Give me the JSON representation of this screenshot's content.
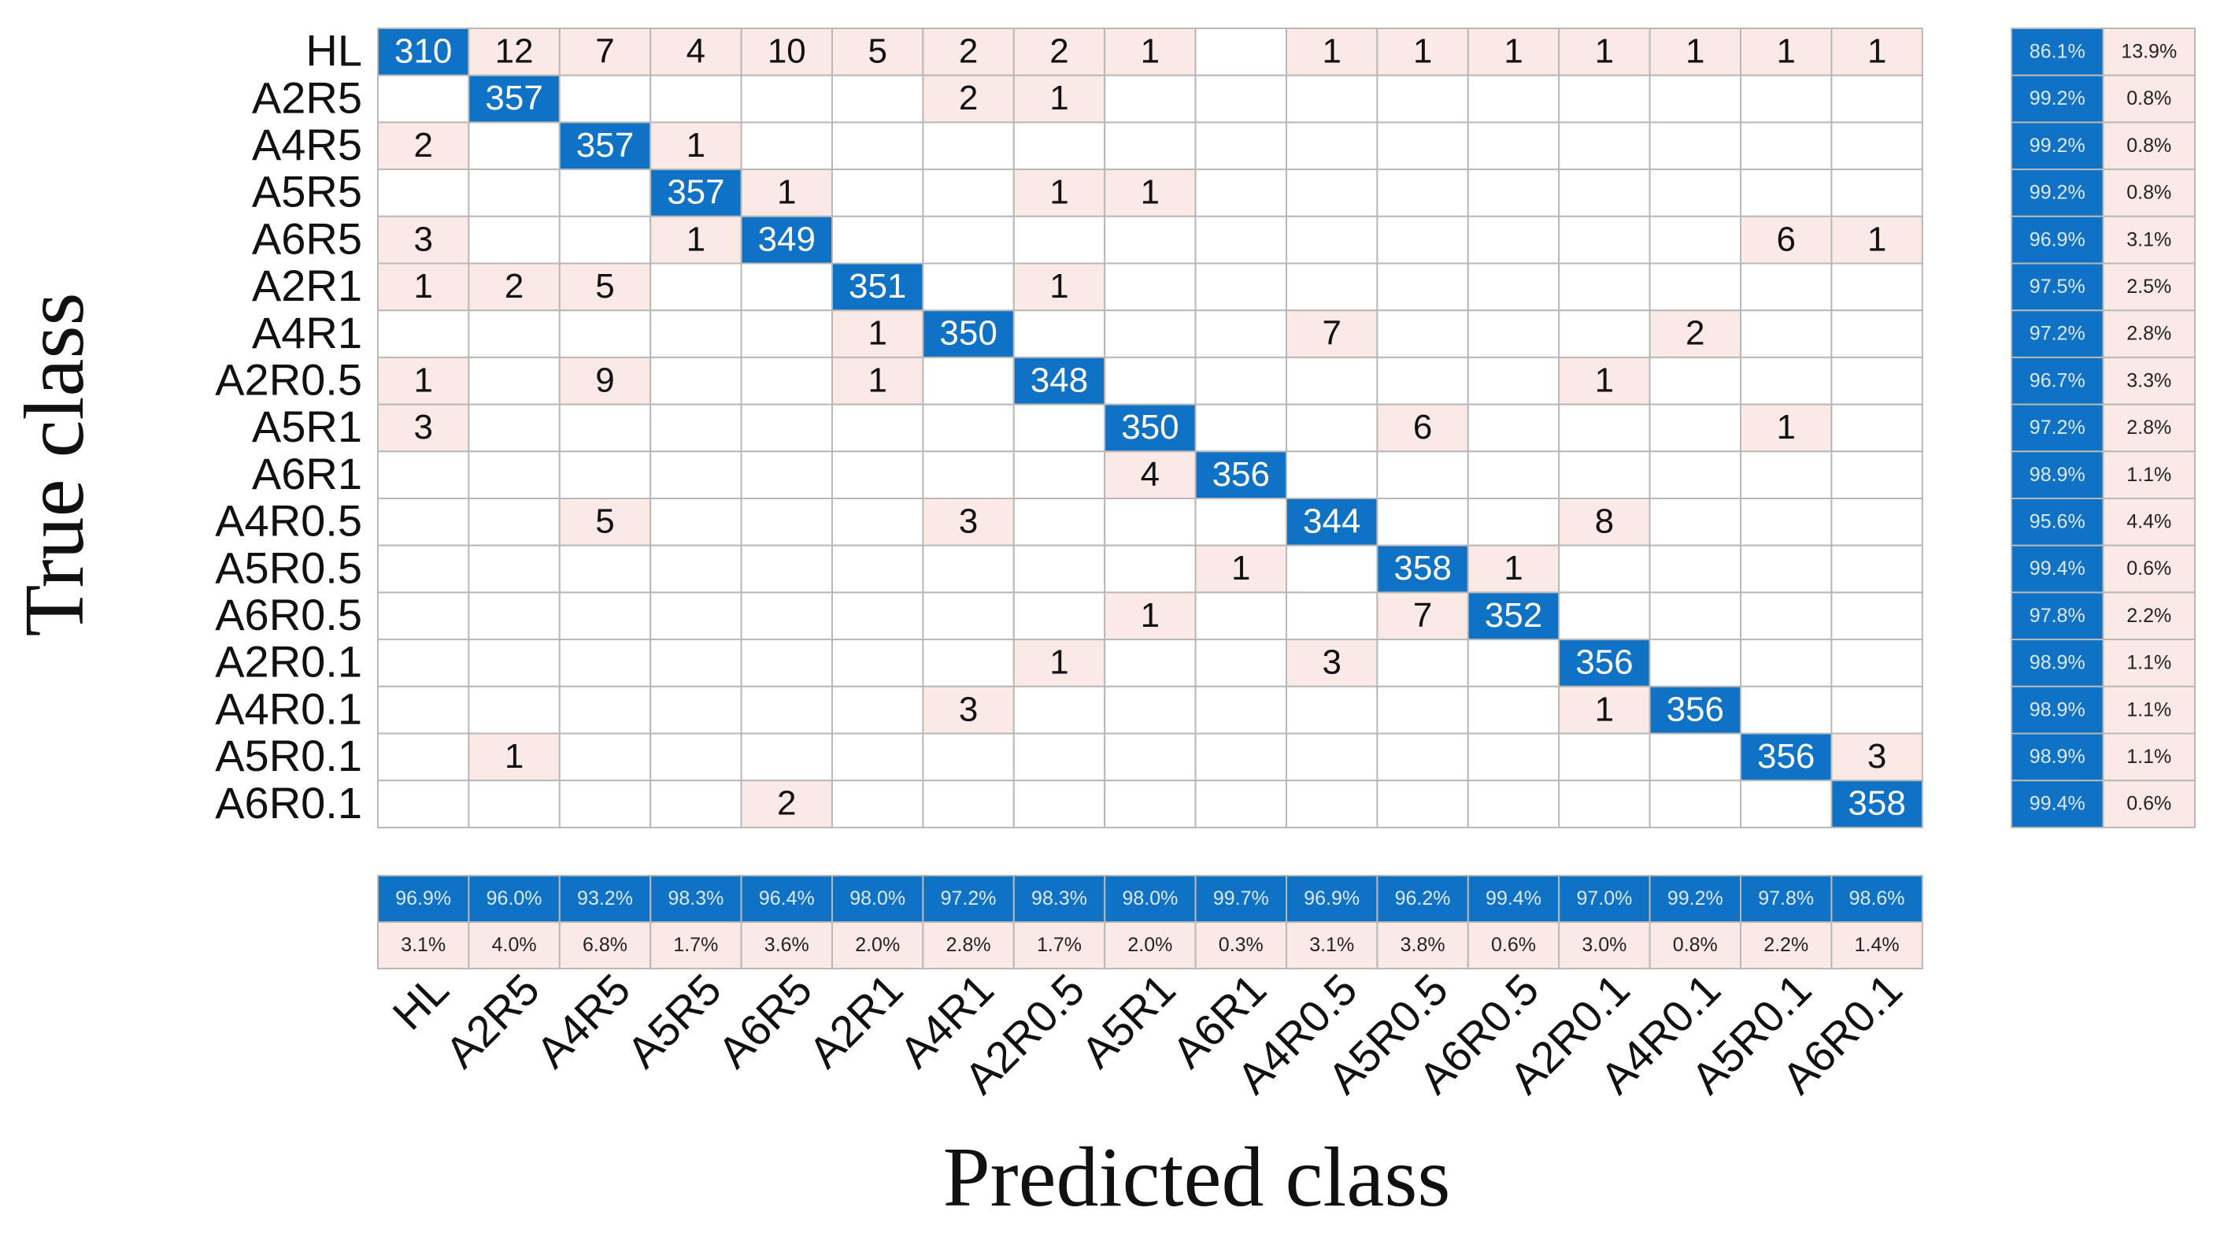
{
  "chart_data": {
    "type": "confusion_matrix",
    "x_label": "Predicted class",
    "y_label": "True class",
    "categories": [
      "HL",
      "A2R5",
      "A4R5",
      "A5R5",
      "A6R5",
      "A2R1",
      "A4R1",
      "A2R0.5",
      "A5R1",
      "A6R1",
      "A4R0.5",
      "A5R0.5",
      "A6R0.5",
      "A2R0.1",
      "A4R0.1",
      "A5R0.1",
      "A6R0.1"
    ],
    "matrix": [
      [
        310,
        12,
        7,
        4,
        10,
        5,
        2,
        2,
        1,
        null,
        1,
        1,
        1,
        1,
        1,
        1,
        1
      ],
      [
        null,
        357,
        null,
        null,
        null,
        null,
        2,
        1,
        null,
        null,
        null,
        null,
        null,
        null,
        null,
        null,
        null
      ],
      [
        2,
        null,
        357,
        1,
        null,
        null,
        null,
        null,
        null,
        null,
        null,
        null,
        null,
        null,
        null,
        null,
        null
      ],
      [
        null,
        null,
        null,
        357,
        1,
        null,
        null,
        1,
        1,
        null,
        null,
        null,
        null,
        null,
        null,
        null,
        null
      ],
      [
        3,
        null,
        null,
        1,
        349,
        null,
        null,
        null,
        null,
        null,
        null,
        null,
        null,
        null,
        null,
        6,
        1
      ],
      [
        1,
        2,
        5,
        null,
        null,
        351,
        null,
        1,
        null,
        null,
        null,
        null,
        null,
        null,
        null,
        null,
        null
      ],
      [
        null,
        null,
        null,
        null,
        null,
        1,
        350,
        null,
        null,
        null,
        7,
        null,
        null,
        null,
        2,
        null,
        null
      ],
      [
        1,
        null,
        9,
        null,
        null,
        1,
        null,
        348,
        null,
        null,
        null,
        null,
        null,
        1,
        null,
        null,
        null
      ],
      [
        3,
        null,
        null,
        null,
        null,
        null,
        null,
        null,
        350,
        null,
        null,
        6,
        null,
        null,
        null,
        1,
        null
      ],
      [
        null,
        null,
        null,
        null,
        null,
        null,
        null,
        null,
        4,
        356,
        null,
        null,
        null,
        null,
        null,
        null,
        null
      ],
      [
        null,
        null,
        5,
        null,
        null,
        null,
        3,
        null,
        null,
        null,
        344,
        null,
        null,
        8,
        null,
        null,
        null
      ],
      [
        null,
        null,
        null,
        null,
        null,
        null,
        null,
        null,
        null,
        1,
        null,
        358,
        1,
        null,
        null,
        null,
        null
      ],
      [
        null,
        null,
        null,
        null,
        null,
        null,
        null,
        null,
        1,
        null,
        null,
        7,
        352,
        null,
        null,
        null,
        null
      ],
      [
        null,
        null,
        null,
        null,
        null,
        null,
        null,
        1,
        null,
        null,
        3,
        null,
        null,
        356,
        null,
        null,
        null
      ],
      [
        null,
        null,
        null,
        null,
        null,
        null,
        3,
        null,
        null,
        null,
        null,
        null,
        null,
        1,
        356,
        null,
        null
      ],
      [
        null,
        1,
        null,
        null,
        null,
        null,
        null,
        null,
        null,
        null,
        null,
        null,
        null,
        null,
        null,
        356,
        3
      ],
      [
        null,
        null,
        null,
        null,
        2,
        null,
        null,
        null,
        null,
        null,
        null,
        null,
        null,
        null,
        null,
        null,
        358
      ]
    ],
    "row_summary": [
      {
        "values": [
          86.1,
          99.2,
          99.2,
          99.2,
          96.9,
          97.5,
          97.2,
          96.7,
          97.2,
          98.9,
          95.6,
          99.4,
          97.8,
          98.9,
          98.9,
          98.9,
          99.4
        ],
        "value_labels": [
          "86.1%",
          "99.2%",
          "99.2%",
          "99.2%",
          "96.9%",
          "97.5%",
          "97.2%",
          "96.7%",
          "97.2%",
          "98.9%",
          "95.6%",
          "99.4%",
          "97.8%",
          "98.9%",
          "98.9%",
          "98.9%",
          "99.4%"
        ]
      },
      {
        "values": [
          13.9,
          0.8,
          0.8,
          0.8,
          3.1,
          2.5,
          2.8,
          3.3,
          2.8,
          1.1,
          4.4,
          0.6,
          2.2,
          1.1,
          1.1,
          1.1,
          0.6
        ],
        "value_labels": [
          "13.9%",
          "0.8%",
          "0.8%",
          "0.8%",
          "3.1%",
          "2.5%",
          "2.8%",
          "3.3%",
          "2.8%",
          "1.1%",
          "4.4%",
          "0.6%",
          "2.2%",
          "1.1%",
          "1.1%",
          "1.1%",
          "0.6%"
        ]
      }
    ],
    "column_summary": [
      {
        "values": [
          96.9,
          96,
          93.2,
          98.3,
          96.4,
          98,
          97.2,
          98.3,
          98,
          99.7,
          96.9,
          96.2,
          99.4,
          97,
          99.2,
          97.8,
          98.6
        ],
        "value_labels": [
          "96.9%",
          "96.0%",
          "93.2%",
          "98.3%",
          "96.4%",
          "98.0%",
          "97.2%",
          "98.3%",
          "98.0%",
          "99.7%",
          "96.9%",
          "96.2%",
          "99.4%",
          "97.0%",
          "99.2%",
          "97.8%",
          "98.6%"
        ]
      },
      {
        "values": [
          3.1,
          4,
          6.8,
          1.7,
          3.6,
          2,
          2.8,
          1.7,
          2,
          0.3,
          3.1,
          3.8,
          0.6,
          3,
          0.8,
          2.2,
          1.4
        ],
        "value_labels": [
          "3.1%",
          "4.0%",
          "6.8%",
          "1.7%",
          "3.6%",
          "2.0%",
          "2.8%",
          "1.7%",
          "2.0%",
          "0.3%",
          "3.1%",
          "3.8%",
          "0.6%",
          "3.0%",
          "0.8%",
          "2.2%",
          "1.4%"
        ]
      }
    ],
    "colors": {
      "diagonal": "#0f72c4",
      "off_diagonal": "#fbe9e5",
      "empty": "#ffffff"
    }
  }
}
